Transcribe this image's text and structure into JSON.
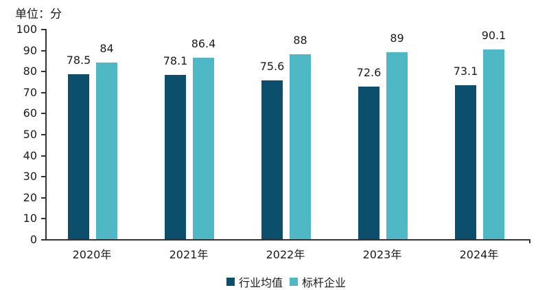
{
  "chart_data": {
    "type": "bar",
    "title": "",
    "unit_label": "单位：分",
    "xlabel": "",
    "ylabel": "",
    "ylim": [
      0,
      100
    ],
    "yticks": [
      0,
      10,
      20,
      30,
      40,
      50,
      60,
      70,
      80,
      90,
      100
    ],
    "grid": false,
    "legend_position": "bottom",
    "categories": [
      "2020年",
      "2021年",
      "2022年",
      "2023年",
      "2024年"
    ],
    "series": [
      {
        "name": "行业均值",
        "color": "#0b4f6c",
        "values": [
          78.5,
          78.1,
          75.6,
          72.6,
          73.1
        ]
      },
      {
        "name": "标杆企业",
        "color": "#4fb8c5",
        "values": [
          84,
          86.4,
          88,
          89,
          90.1
        ]
      }
    ]
  }
}
